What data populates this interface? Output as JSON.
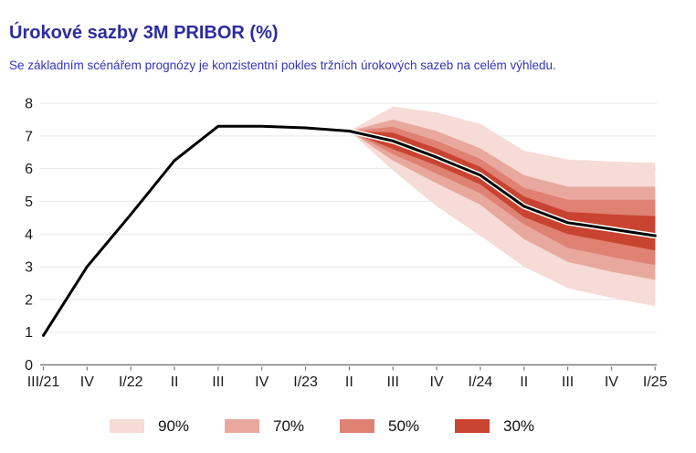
{
  "header": {
    "title": "Úrokové sazby 3M PRIBOR (%)",
    "subtitle": "Se základním scénářem prognózy je konzistentní pokles tržních úrokových sazeb na celém výhledu."
  },
  "colors": {
    "title": "#2c2c9f",
    "subtitle": "#3434bd",
    "grid": "#ebebeb",
    "axis": "#7a7a7a",
    "tick": "#7a7a7a",
    "axis_text": "#1a1a1a",
    "line": "#000000",
    "line_casing": "#ffffff"
  },
  "chart_data": {
    "type": "line",
    "subtype": "fan-chart",
    "title": "Úrokové sazby 3M PRIBOR (%)",
    "xlabel": "",
    "ylabel": "",
    "x_labels": [
      "III/21",
      "IV",
      "I/22",
      "II",
      "III",
      "IV",
      "I/23",
      "II",
      "III",
      "IV",
      "I/24",
      "II",
      "III",
      "IV",
      "I/25"
    ],
    "yticks": [
      0,
      1,
      2,
      3,
      4,
      5,
      6,
      7,
      8
    ],
    "ylim": [
      0,
      8
    ],
    "grid": "horizontal",
    "legend_position": "bottom",
    "series": [
      {
        "name": "3M PRIBOR",
        "values": [
          0.9,
          3.0,
          4.6,
          6.25,
          7.3,
          7.3,
          7.25,
          7.15,
          6.85,
          6.35,
          5.8,
          4.85,
          4.35,
          4.15,
          3.95
        ]
      }
    ],
    "fan": {
      "start_index": 7,
      "start_label": "II/23",
      "bands": [
        {
          "label": "90%",
          "color": "#f6dbd6",
          "upper": [
            7.15,
            7.9,
            7.72,
            7.37,
            6.55,
            6.28,
            6.22,
            6.18
          ],
          "lower": [
            7.15,
            5.95,
            4.85,
            3.95,
            3.0,
            2.35,
            2.05,
            1.8
          ]
        },
        {
          "label": "70%",
          "color": "#e8a89d",
          "upper": [
            7.15,
            7.5,
            7.15,
            6.62,
            5.8,
            5.45,
            5.45,
            5.45
          ],
          "lower": [
            7.15,
            6.25,
            5.55,
            4.9,
            3.85,
            3.15,
            2.85,
            2.6
          ]
        },
        {
          "label": "50%",
          "color": "#df8173",
          "upper": [
            7.15,
            7.28,
            6.85,
            6.3,
            5.42,
            5.05,
            5.05,
            5.05
          ],
          "lower": [
            7.15,
            6.45,
            5.85,
            5.25,
            4.3,
            3.58,
            3.3,
            3.05
          ]
        },
        {
          "label": "30%",
          "color": "#c94430",
          "upper": [
            7.15,
            7.1,
            6.62,
            6.05,
            5.15,
            4.68,
            4.6,
            4.55
          ],
          "lower": [
            7.15,
            6.6,
            6.1,
            5.52,
            4.52,
            4.0,
            3.75,
            3.5
          ]
        }
      ]
    }
  }
}
